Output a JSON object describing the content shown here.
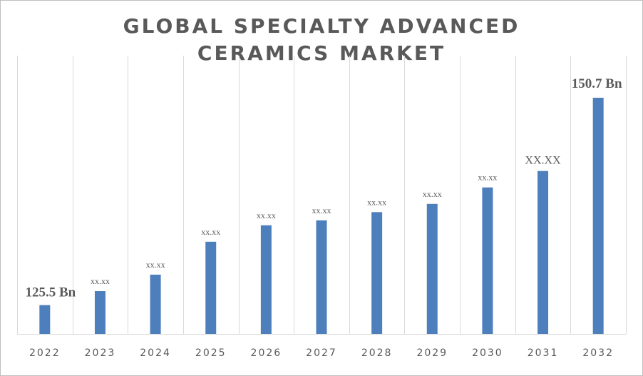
{
  "chart_data": {
    "type": "bar",
    "title_lines": [
      "GLOBAL SPECIALTY ADVANCED",
      "CERAMICS MARKET"
    ],
    "categories": [
      "2022",
      "2023",
      "2024",
      "2025",
      "2026",
      "2027",
      "2028",
      "2029",
      "2030",
      "2031",
      "2032"
    ],
    "values": [
      125.5,
      127.2,
      129.2,
      133.2,
      135.2,
      135.8,
      136.8,
      137.8,
      139.8,
      141.8,
      150.7
    ],
    "data_labels": [
      "125.5  Bn",
      "xx.xx",
      "xx.xx",
      "xx.xx",
      "xx.xx",
      "xx.xx",
      "xx.xx",
      "xx.xx",
      "xx.xx",
      "XX.XX",
      "150.7 Bn"
    ],
    "ylim": [
      122,
      152
    ],
    "bar_color": "#4e7fbd",
    "grid": "vertical",
    "legend": "none"
  }
}
